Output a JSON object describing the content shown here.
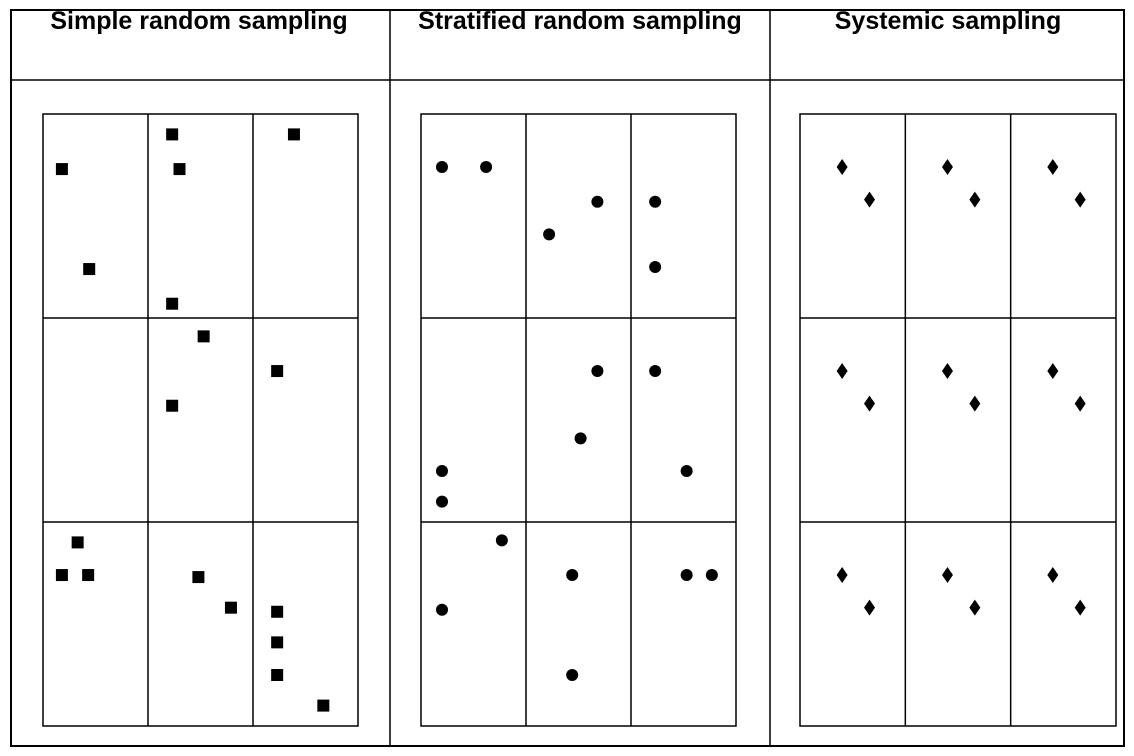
{
  "headers": [
    "Simple random sampling",
    "Stratified random sampling",
    "Systemic sampling"
  ],
  "panels": [
    {
      "marker": "square",
      "cells": [
        [
          [
            [
              0.18,
              0.27
            ],
            [
              0.44,
              0.76
            ]
          ],
          [
            [
              0.23,
              0.1
            ],
            [
              0.3,
              0.27
            ],
            [
              0.23,
              0.93
            ]
          ],
          [
            [
              0.39,
              0.1
            ]
          ]
        ],
        [
          [],
          [
            [
              0.53,
              0.09
            ],
            [
              0.23,
              0.43
            ]
          ],
          [
            [
              0.23,
              0.26
            ]
          ]
        ],
        [
          [
            [
              0.33,
              0.1
            ],
            [
              0.18,
              0.26
            ],
            [
              0.43,
              0.26
            ]
          ],
          [
            [
              0.48,
              0.27
            ],
            [
              0.79,
              0.42
            ]
          ],
          [
            [
              0.23,
              0.44
            ],
            [
              0.23,
              0.59
            ],
            [
              0.23,
              0.75
            ],
            [
              0.67,
              0.9
            ]
          ]
        ]
      ]
    },
    {
      "marker": "circle",
      "cells": [
        [
          [
            [
              0.2,
              0.26
            ],
            [
              0.62,
              0.26
            ]
          ],
          [
            [
              0.22,
              0.59
            ],
            [
              0.68,
              0.43
            ]
          ],
          [
            [
              0.23,
              0.43
            ],
            [
              0.23,
              0.75
            ]
          ]
        ],
        [
          [
            [
              0.2,
              0.75
            ],
            [
              0.2,
              0.9
            ]
          ],
          [
            [
              0.52,
              0.59
            ],
            [
              0.68,
              0.26
            ]
          ],
          [
            [
              0.23,
              0.26
            ],
            [
              0.53,
              0.75
            ]
          ]
        ],
        [
          [
            [
              0.2,
              0.43
            ],
            [
              0.77,
              0.09
            ]
          ],
          [
            [
              0.44,
              0.26
            ],
            [
              0.44,
              0.75
            ]
          ],
          [
            [
              0.53,
              0.26
            ],
            [
              0.77,
              0.26
            ]
          ]
        ]
      ]
    },
    {
      "marker": "diamond",
      "cells": [
        [
          [
            [
              0.4,
              0.26
            ],
            [
              0.66,
              0.42
            ]
          ],
          [
            [
              0.4,
              0.26
            ],
            [
              0.66,
              0.42
            ]
          ],
          [
            [
              0.4,
              0.26
            ],
            [
              0.66,
              0.42
            ]
          ]
        ],
        [
          [
            [
              0.4,
              0.26
            ],
            [
              0.66,
              0.42
            ]
          ],
          [
            [
              0.4,
              0.26
            ],
            [
              0.66,
              0.42
            ]
          ],
          [
            [
              0.4,
              0.26
            ],
            [
              0.66,
              0.42
            ]
          ]
        ],
        [
          [
            [
              0.4,
              0.26
            ],
            [
              0.66,
              0.42
            ]
          ],
          [
            [
              0.4,
              0.26
            ],
            [
              0.66,
              0.42
            ]
          ],
          [
            [
              0.4,
              0.26
            ],
            [
              0.66,
              0.42
            ]
          ]
        ]
      ]
    }
  ]
}
